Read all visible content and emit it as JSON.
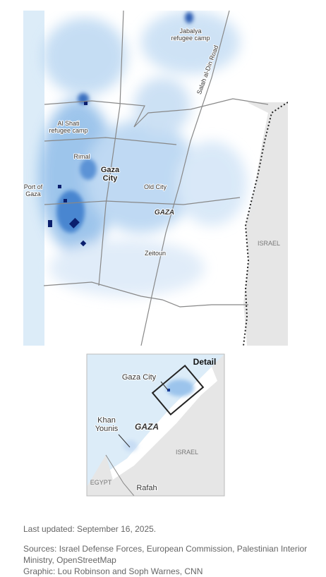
{
  "main_map": {
    "jabalya": [
      "Jabalya",
      "refugee camp"
    ],
    "road": "Salah al-Din Road",
    "al_shati": [
      "Al Shati",
      "refugee camp"
    ],
    "rimal": "Rimal",
    "gaza_city": [
      "Gaza",
      "City"
    ],
    "port": [
      "Port of",
      "Gaza"
    ],
    "old_city": "Old City",
    "gaza": "GAZA",
    "zeitoun": "Zeitoun",
    "israel": "ISRAEL"
  },
  "inset_map": {
    "detail": "Detail",
    "gaza_city": "Gaza City",
    "khan_younis": [
      "Khan",
      "Younis"
    ],
    "gaza": "GAZA",
    "israel": "ISRAEL",
    "egypt": "EGYPT",
    "rafah": "Rafah"
  },
  "footer": {
    "updated": "Last updated: September 16, 2025.",
    "sources": "Sources: Israel Defense Forces, European Commission, Palestinian Interior Ministry, OpenStreetMap",
    "graphic": "Graphic: Lou Robinson and Soph Warnes, CNN"
  }
}
